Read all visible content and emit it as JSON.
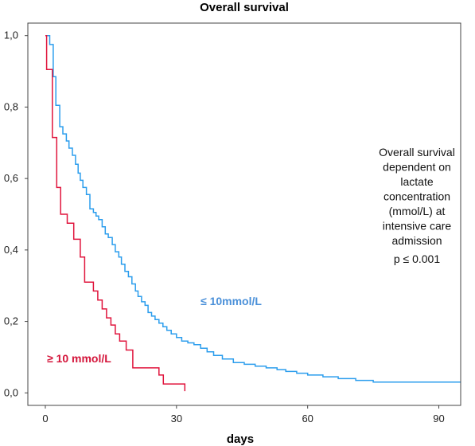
{
  "chart_data": {
    "type": "line",
    "title": "Overall survival",
    "xlabel": "days",
    "ylabel": "",
    "xlim": [
      -4,
      95
    ],
    "ylim": [
      -0.035,
      1.035
    ],
    "x_ticks": [
      0,
      30,
      60,
      90
    ],
    "x_tick_labels": [
      "0",
      "30",
      "60",
      "90"
    ],
    "y_ticks": [
      0.0,
      0.2,
      0.4,
      0.6,
      0.8,
      1.0
    ],
    "y_tick_labels": [
      "0,0",
      "0,2",
      "0,4",
      "0,6",
      "0,8",
      "1,0"
    ],
    "grid": false,
    "step": true,
    "annotation": {
      "lines": [
        "Overall survival",
        "dependent on",
        "lactate",
        "concentration",
        "(mmol/L) at",
        "intensive care",
        "admission"
      ],
      "pvalue": "p ≤ 0.001"
    },
    "series": [
      {
        "name": "≤ 10mmol/L",
        "color": "#2b9ded",
        "label_color": "#4a90d9",
        "x": [
          0,
          1,
          1.8,
          2.4,
          3.3,
          4.0,
          4.8,
          5.4,
          6.2,
          6.9,
          7.5,
          8.0,
          8.6,
          9.4,
          10.2,
          11.0,
          11.6,
          12.2,
          13.0,
          13.7,
          14.4,
          15.3,
          16.0,
          16.8,
          17.4,
          18.2,
          19.0,
          19.8,
          20.6,
          21.2,
          22.0,
          22.8,
          23.5,
          24.3,
          25.1,
          26.0,
          26.9,
          27.8,
          28.8,
          30.0,
          31.2,
          32.6,
          34.0,
          35.5,
          37.0,
          38.5,
          40.5,
          43.0,
          45.5,
          48.0,
          50.5,
          53.0,
          55.0,
          57.5,
          60.0,
          63.5,
          67.0,
          71.0,
          75.0,
          80.0,
          85.0,
          90.0,
          95.0
        ],
        "y": [
          1.0,
          0.975,
          0.885,
          0.805,
          0.745,
          0.725,
          0.705,
          0.685,
          0.665,
          0.64,
          0.615,
          0.595,
          0.575,
          0.555,
          0.515,
          0.505,
          0.495,
          0.485,
          0.465,
          0.445,
          0.435,
          0.415,
          0.395,
          0.38,
          0.36,
          0.34,
          0.325,
          0.305,
          0.285,
          0.27,
          0.255,
          0.245,
          0.225,
          0.215,
          0.205,
          0.195,
          0.185,
          0.175,
          0.165,
          0.155,
          0.145,
          0.14,
          0.135,
          0.125,
          0.115,
          0.105,
          0.095,
          0.085,
          0.08,
          0.075,
          0.07,
          0.065,
          0.06,
          0.055,
          0.05,
          0.045,
          0.04,
          0.035,
          0.03,
          0.03,
          0.03,
          0.03,
          0.03
        ]
      },
      {
        "name": "≥ 10 mmol/L",
        "color": "#e0143c",
        "label_color": "#d4143a",
        "x": [
          0,
          0.3,
          1.6,
          2.6,
          3.5,
          5.0,
          6.5,
          8.0,
          9.0,
          11.0,
          12.0,
          13.0,
          14.0,
          15.0,
          16.0,
          17.0,
          18.5,
          20.0,
          26.0,
          27.0,
          31.9
        ],
        "y": [
          1.0,
          0.905,
          0.715,
          0.575,
          0.5,
          0.475,
          0.43,
          0.38,
          0.31,
          0.285,
          0.26,
          0.235,
          0.21,
          0.19,
          0.165,
          0.145,
          0.12,
          0.07,
          0.05,
          0.025,
          0.005
        ]
      }
    ]
  }
}
